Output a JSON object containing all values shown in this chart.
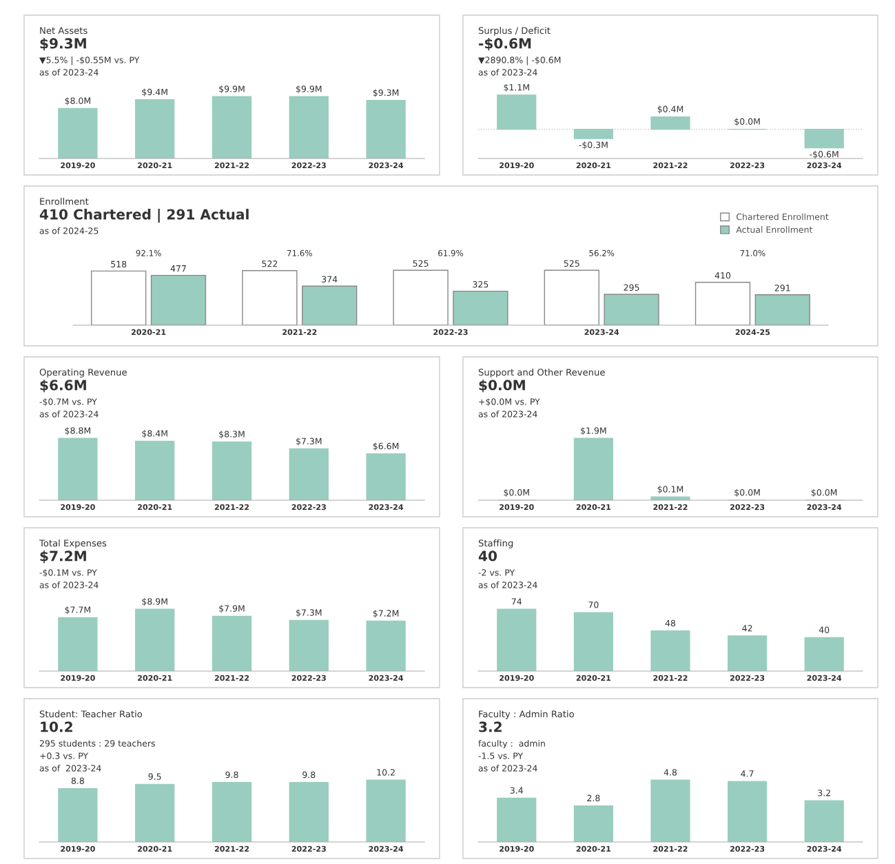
{
  "chart_data": [
    {
      "type": "bar",
      "title": "Net Assets",
      "subtitle": "$9.3M",
      "annotations": [
        "▼5.5% | -$0.55M vs. PY",
        "as of 2023-24"
      ],
      "categories": [
        "2019-20",
        "2020-21",
        "2021-22",
        "2022-23",
        "2023-24"
      ],
      "values": [
        8.0,
        9.4,
        9.9,
        9.9,
        9.3
      ],
      "value_labels": [
        "$8.0M",
        "$9.4M",
        "$9.9M",
        "$9.9M",
        "$9.3M"
      ],
      "color": "#99cdbf"
    },
    {
      "type": "bar",
      "title": "Surplus / Deficit",
      "subtitle": "-$0.6M",
      "annotations": [
        "▼2890.8% | -$0.6M",
        "as of 2023-24"
      ],
      "categories": [
        "2019-20",
        "2020-21",
        "2021-22",
        "2022-23",
        "2023-24"
      ],
      "values": [
        1.1,
        -0.3,
        0.4,
        0.0,
        -0.6
      ],
      "value_labels": [
        "$1.1M",
        "-$0.3M",
        "$0.4M",
        "$0.0M",
        "-$0.6M"
      ],
      "color": "#99cdbf",
      "ref_lines": [
        {
          "axis": "y",
          "value": 0,
          "color": "#bbbbbb",
          "line_style": "dotted"
        }
      ]
    },
    {
      "type": "bar",
      "title": "Enrollment",
      "subtitle": "410 Chartered | 291 Actual",
      "annotations": [
        "as of 2024-25",
        "92.1%",
        "71.6%",
        "61.9%",
        "56.2%",
        "71.0%"
      ],
      "categories": [
        "2020-21",
        "2021-22",
        "2022-23",
        "2023-24",
        "2024-25"
      ],
      "series": [
        {
          "name": "Chartered Enrollment",
          "color": "#ffffff",
          "values": [
            518,
            522,
            525,
            525,
            410
          ]
        },
        {
          "name": "Actual Enrollment",
          "color": "#99cdbf",
          "values": [
            477,
            374,
            325,
            295,
            291
          ]
        }
      ],
      "data_labels": true,
      "legend": "top right"
    },
    {
      "type": "bar",
      "title": "Operating Revenue",
      "subtitle": "$6.6M",
      "annotations": [
        "-$0.7M vs. PY",
        "as of 2023-24"
      ],
      "categories": [
        "2019-20",
        "2020-21",
        "2021-22",
        "2022-23",
        "2023-24"
      ],
      "values": [
        8.8,
        8.4,
        8.3,
        7.3,
        6.6
      ],
      "value_labels": [
        "$8.8M",
        "$8.4M",
        "$8.3M",
        "$7.3M",
        "$6.6M"
      ],
      "color": "#99cdbf"
    },
    {
      "type": "bar",
      "title": "Support and Other Revenue",
      "subtitle": "$0.0M",
      "annotations": [
        "+$0.0M vs. PY",
        "as of 2023-24"
      ],
      "categories": [
        "2019-20",
        "2020-21",
        "2021-22",
        "2022-23",
        "2023-24"
      ],
      "values": [
        0.0,
        1.9,
        0.1,
        0.0,
        0.0
      ],
      "value_labels": [
        "$0.0M",
        "$1.9M",
        "$0.1M",
        "$0.0M",
        "$0.0M"
      ],
      "color": "#99cdbf"
    },
    {
      "type": "bar",
      "title": "Total Expenses",
      "subtitle": "$7.2M",
      "annotations": [
        "-$0.1M vs. PY",
        "as of 2023-24"
      ],
      "categories": [
        "2019-20",
        "2020-21",
        "2021-22",
        "2022-23",
        "2023-24"
      ],
      "values": [
        7.7,
        8.9,
        7.9,
        7.3,
        7.2
      ],
      "value_labels": [
        "$7.7M",
        "$8.9M",
        "$7.9M",
        "$7.3M",
        "$7.2M"
      ],
      "color": "#99cdbf"
    },
    {
      "type": "bar",
      "title": "Staffing",
      "subtitle": "40",
      "annotations": [
        "-2 vs. PY",
        "as of 2023-24"
      ],
      "categories": [
        "2019-20",
        "2020-21",
        "2021-22",
        "2022-23",
        "2023-24"
      ],
      "values": [
        74,
        70,
        48,
        42,
        40
      ],
      "data_labels": true,
      "color": "#99cdbf"
    },
    {
      "type": "bar",
      "title": "Student: Teacher Ratio",
      "subtitle": "10.2",
      "annotations": [
        "295 students : 29 teachers",
        "+0.3 vs. PY",
        "as of  2023-24"
      ],
      "categories": [
        "2019-20",
        "2020-21",
        "2021-22",
        "2022-23",
        "2023-24"
      ],
      "values": [
        8.8,
        9.5,
        9.8,
        9.8,
        10.2
      ],
      "data_labels": true,
      "color": "#99cdbf"
    },
    {
      "type": "bar",
      "title": "Faculty : Admin Ratio",
      "subtitle": "3.2",
      "annotations": [
        "faculty :  admin",
        "-1.5 vs. PY",
        "as of 2023-24"
      ],
      "categories": [
        "2019-20",
        "2020-21",
        "2021-22",
        "2022-23",
        "2023-24"
      ],
      "values": [
        3.4,
        2.8,
        4.8,
        4.7,
        3.2
      ],
      "data_labels": true,
      "color": "#99cdbf"
    }
  ]
}
